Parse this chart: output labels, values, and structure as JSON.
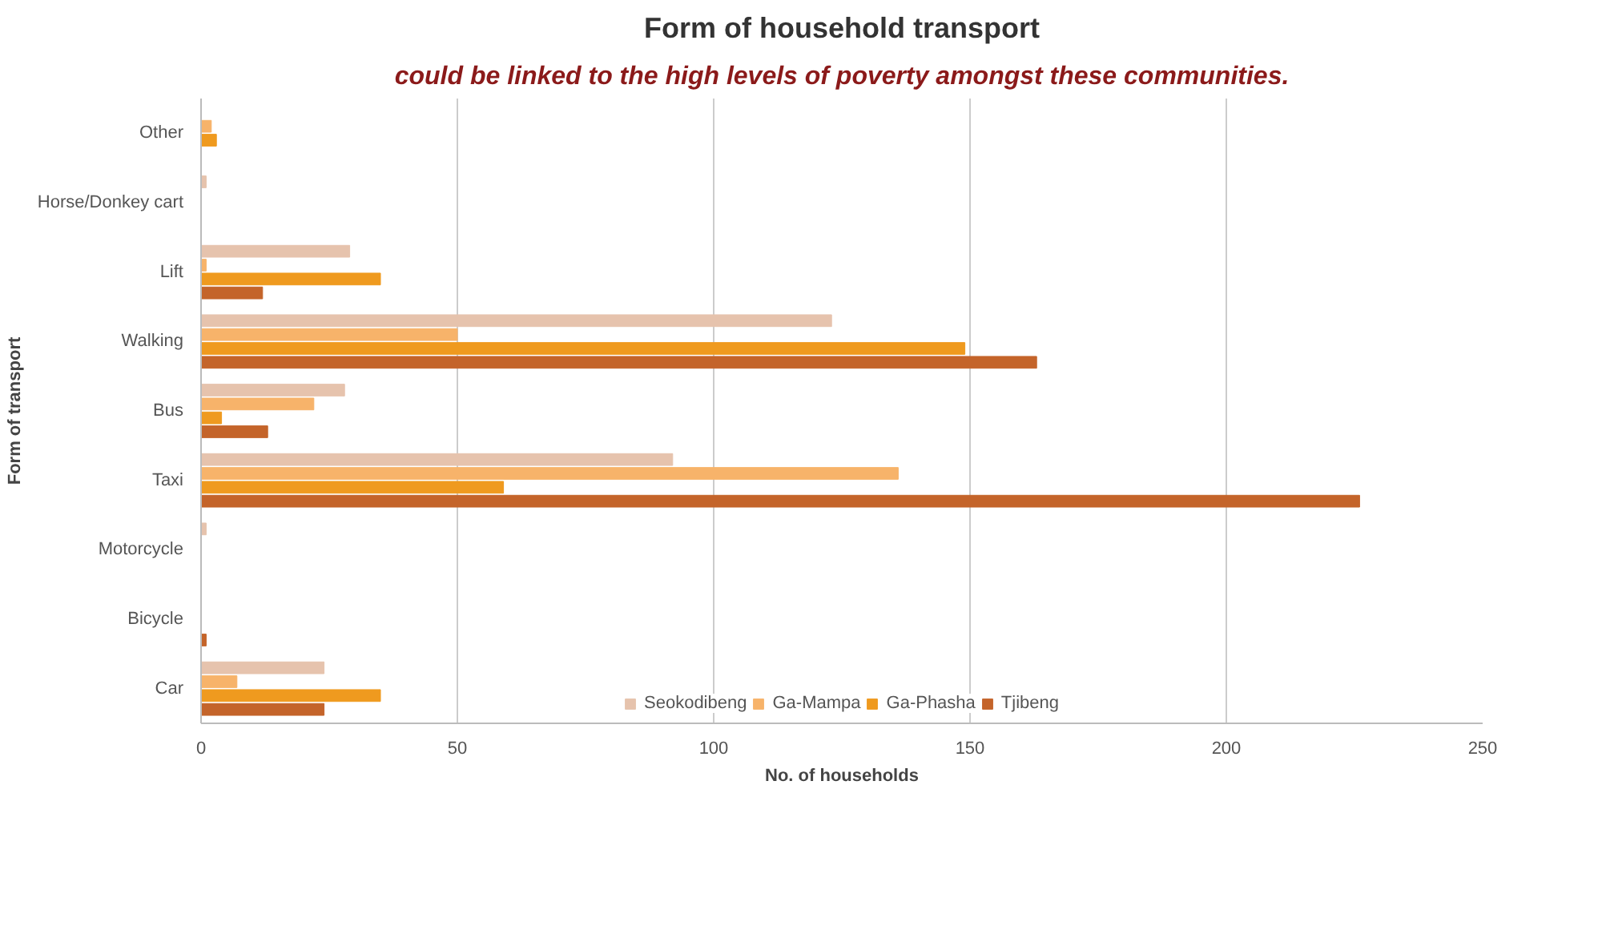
{
  "chart_data": {
    "type": "bar",
    "orientation": "horizontal",
    "title": "Form of household transport",
    "annotations": [
      "could be linked to the high levels of poverty amongst these communities."
    ],
    "xlabel": "No. of households",
    "ylabel": "Form of transport",
    "categories": [
      "Other",
      "Horse/Donkey cart",
      "Lift",
      "Walking",
      "Bus",
      "Taxi",
      "Motorcycle",
      "Bicycle",
      "Car"
    ],
    "series": [
      {
        "name": "Seokodibeng",
        "color": "#e6c3ad",
        "values": [
          0,
          1,
          29,
          123,
          28,
          92,
          1,
          0,
          24
        ]
      },
      {
        "name": "Ga-Mampa",
        "color": "#f7b36a",
        "values": [
          2,
          0,
          1,
          50,
          22,
          136,
          0,
          0,
          7
        ]
      },
      {
        "name": "Ga-Phasha",
        "color": "#ef9a1f",
        "values": [
          3,
          0,
          35,
          149,
          4,
          59,
          0,
          0,
          35
        ]
      },
      {
        "name": "Tjibeng",
        "color": "#c4642a",
        "values": [
          0,
          0,
          12,
          163,
          13,
          226,
          0,
          1,
          24
        ]
      }
    ],
    "xlim": [
      0,
      250
    ],
    "xticks": [
      0,
      50,
      100,
      150,
      200,
      250
    ],
    "grid": "x",
    "legend": "bottom"
  }
}
